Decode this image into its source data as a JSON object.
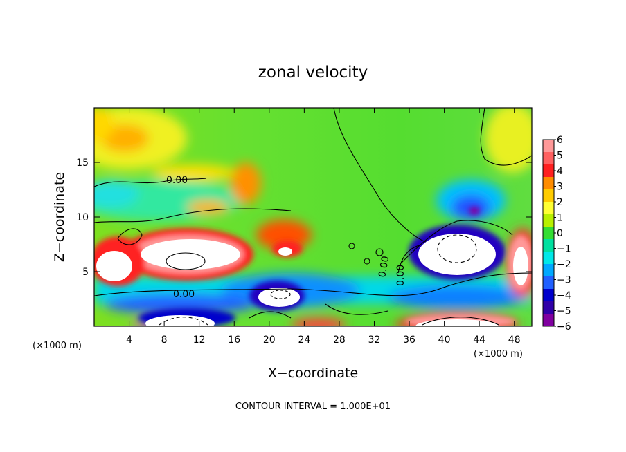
{
  "chart_data": {
    "type": "heatmap",
    "title": "zonal velocity",
    "xlabel": "X−coordinate",
    "ylabel": "Z−coordinate",
    "xlim": [
      0,
      50
    ],
    "ylim": [
      0,
      20
    ],
    "x_ticks": [
      4,
      8,
      12,
      16,
      20,
      24,
      28,
      32,
      36,
      40,
      44,
      48
    ],
    "y_ticks": [
      5,
      10,
      15
    ],
    "x_unit": "(×1000 m)",
    "y_unit": "(×1000 m)",
    "colorbar": {
      "ticks": [
        6,
        5,
        4,
        3,
        2,
        1,
        0,
        -1,
        -2,
        -3,
        -4,
        -5,
        -6
      ],
      "colors": [
        "#ff9999",
        "#ff6060",
        "#ff2020",
        "#ff8c00",
        "#ffcc00",
        "#ffff33",
        "#b8f000",
        "#33dd33",
        "#00e0a0",
        "#00e8e8",
        "#00a8ff",
        "#2060ff",
        "#0000cc",
        "#3000a8",
        "#8000a0"
      ]
    },
    "contour_label": "0.00",
    "footer": "CONTOUR INTERVAL = 1.000E+01"
  }
}
